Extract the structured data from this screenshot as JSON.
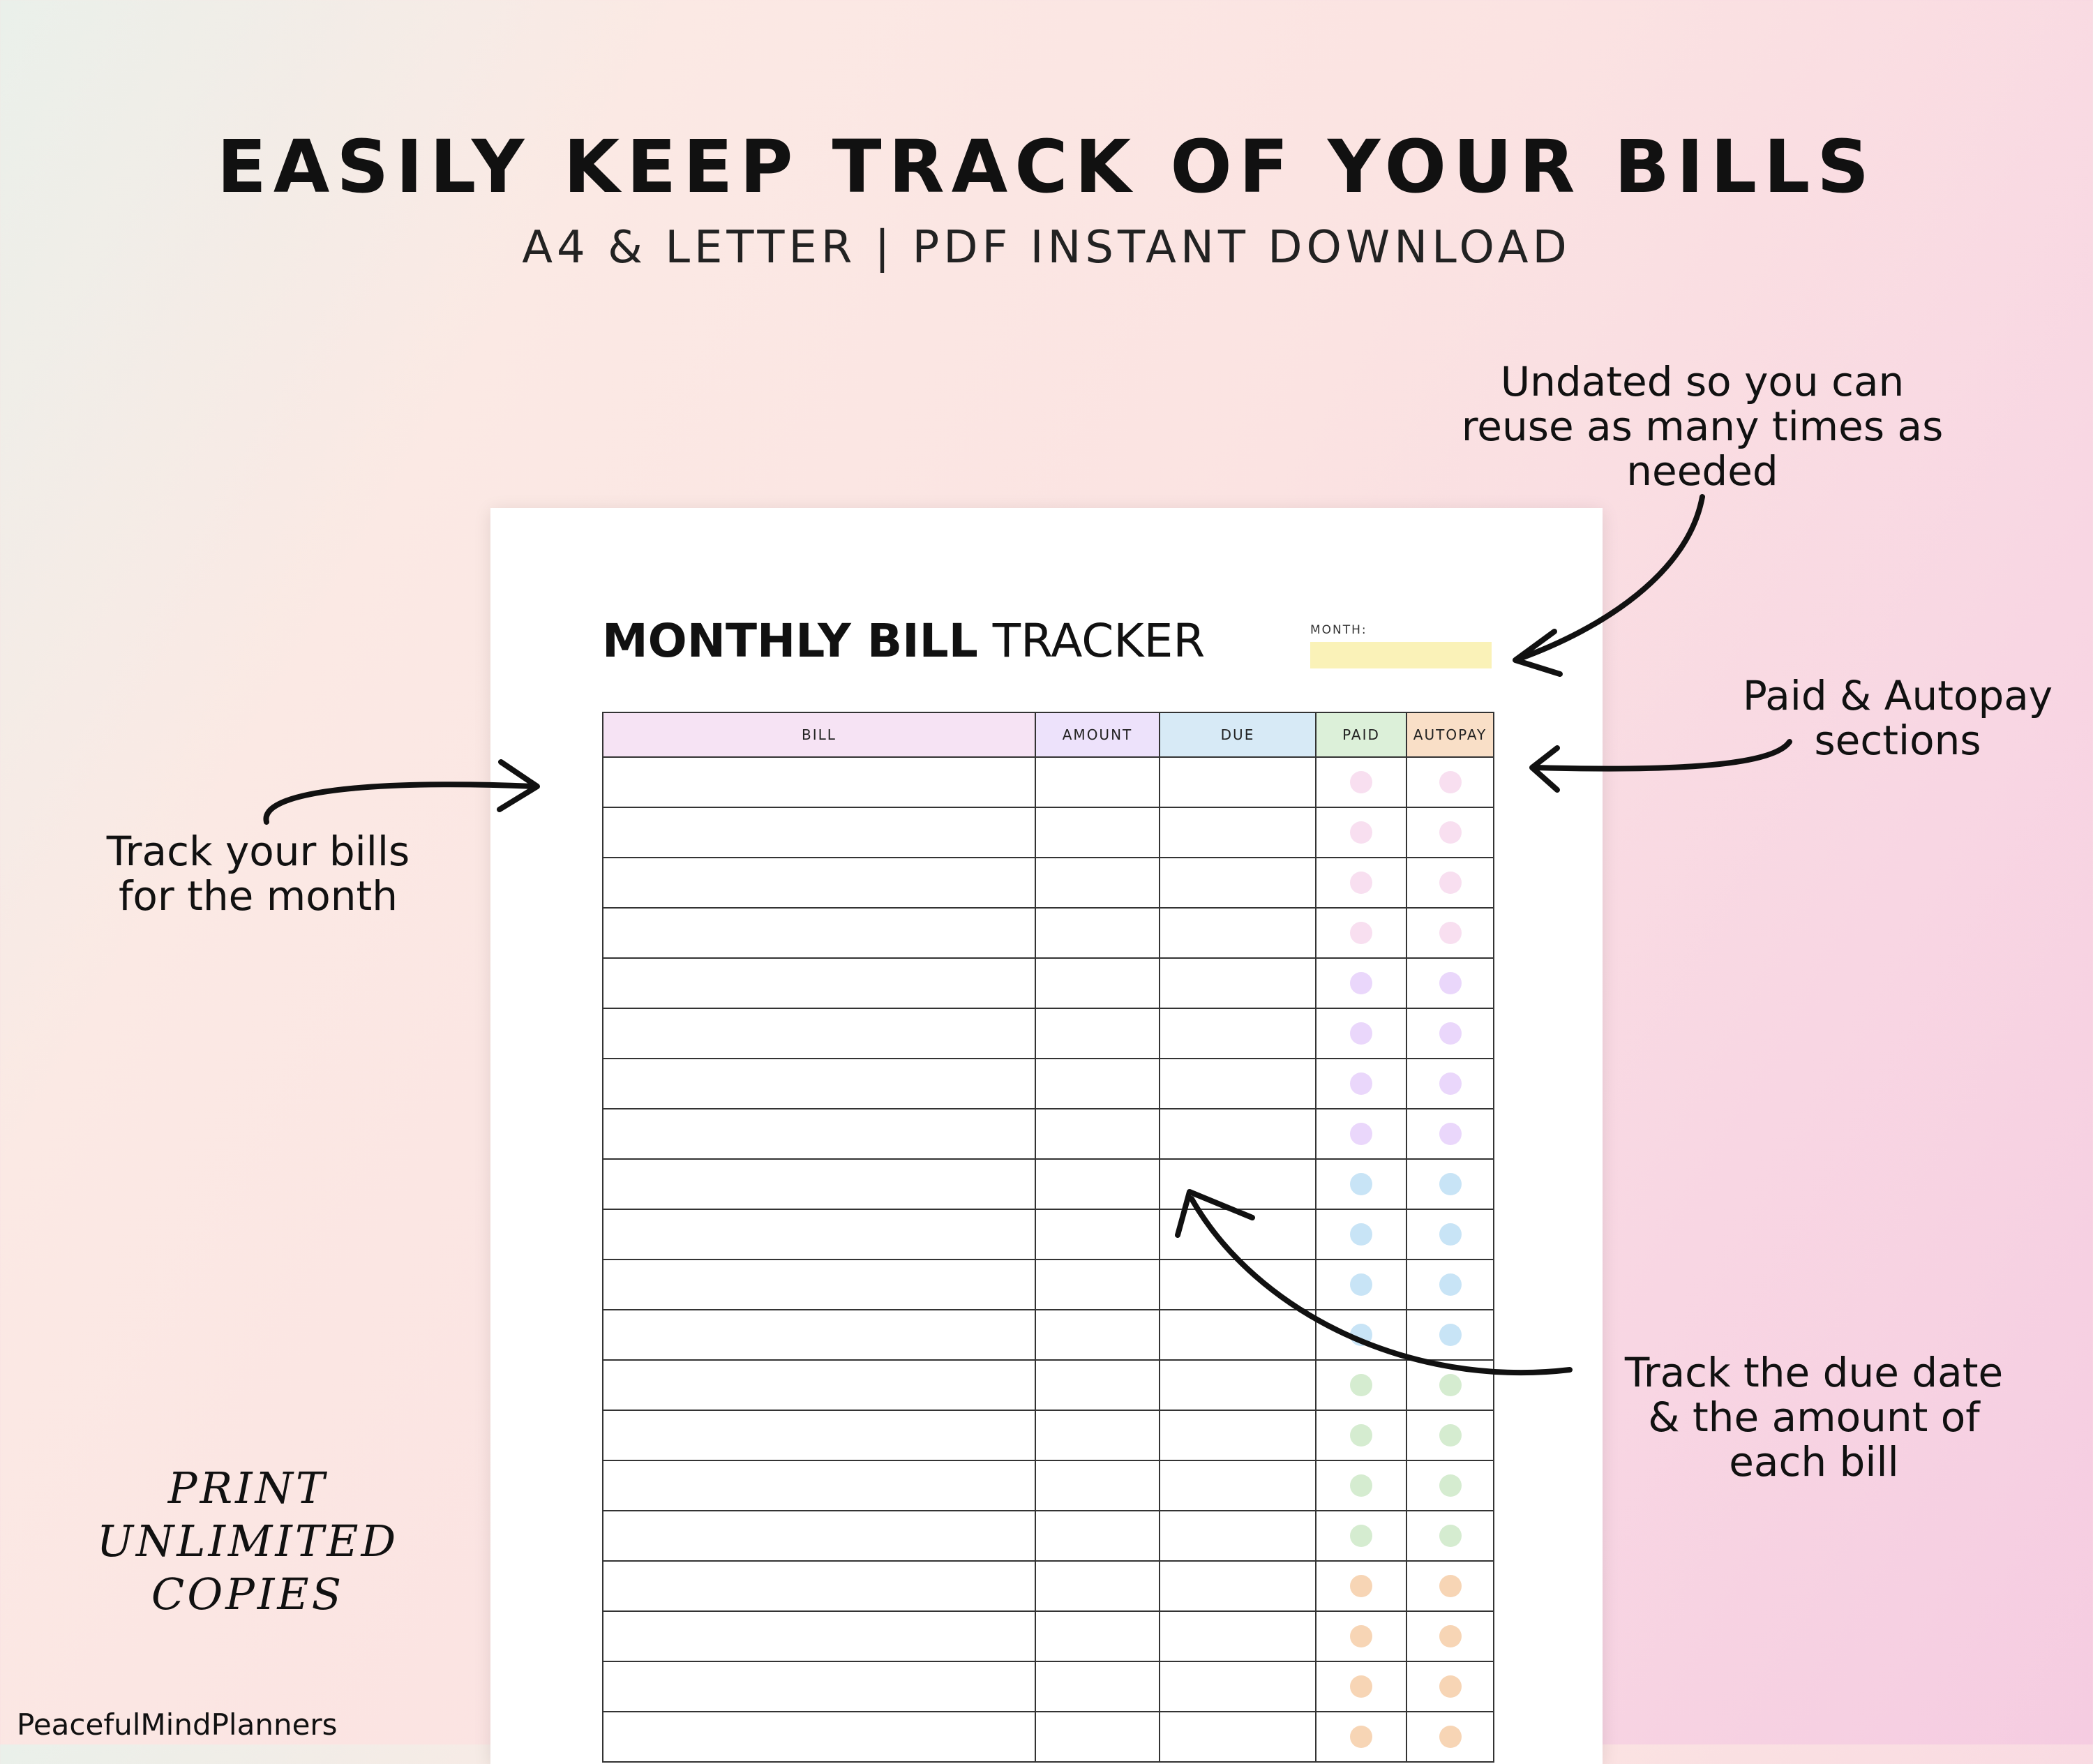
{
  "headline": "EASILY KEEP TRACK OF YOUR BILLS",
  "subline": "A4 & LETTER | PDF INSTANT DOWNLOAD",
  "callouts": {
    "undated": [
      "Undated so you can",
      "reuse as many times as",
      "needed"
    ],
    "paid_autopay": [
      "Paid & Autopay",
      "sections"
    ],
    "track_bills": [
      "Track your bills",
      "for the month"
    ],
    "due_amount": [
      "Track the due date",
      "& the amount of",
      "each bill"
    ]
  },
  "print_copies": [
    "PRINT UNLIMITED",
    "COPIES"
  ],
  "brand": "PeacefulMindPlanners",
  "sheet": {
    "title_bold": "MONTHLY BILL",
    "title_light": "TRACKER",
    "month_label": "MONTH:",
    "month_color": "#faf2b8",
    "columns": [
      {
        "label": "BILL",
        "color": "#f6e3f4"
      },
      {
        "label": "AMOUNT",
        "color": "#ede2fb"
      },
      {
        "label": "DUE",
        "color": "#d7eaf6"
      },
      {
        "label": "PAID",
        "color": "#dcf0d9"
      },
      {
        "label": "AUTOPAY",
        "color": "#f9dfc7"
      }
    ],
    "dot_colors": [
      "#f8dff0",
      "#f8dff0",
      "#f8dff0",
      "#f8dff0",
      "#ead7fb",
      "#ead7fb",
      "#ead7fb",
      "#ead7fb",
      "#c8e4f6",
      "#c8e4f6",
      "#c8e4f6",
      "#c8e4f6",
      "#d5ecd0",
      "#d5ecd0",
      "#d5ecd0",
      "#d5ecd0",
      "#f7d5b5",
      "#f7d5b5",
      "#f7d5b5",
      "#f7d5b5"
    ]
  }
}
